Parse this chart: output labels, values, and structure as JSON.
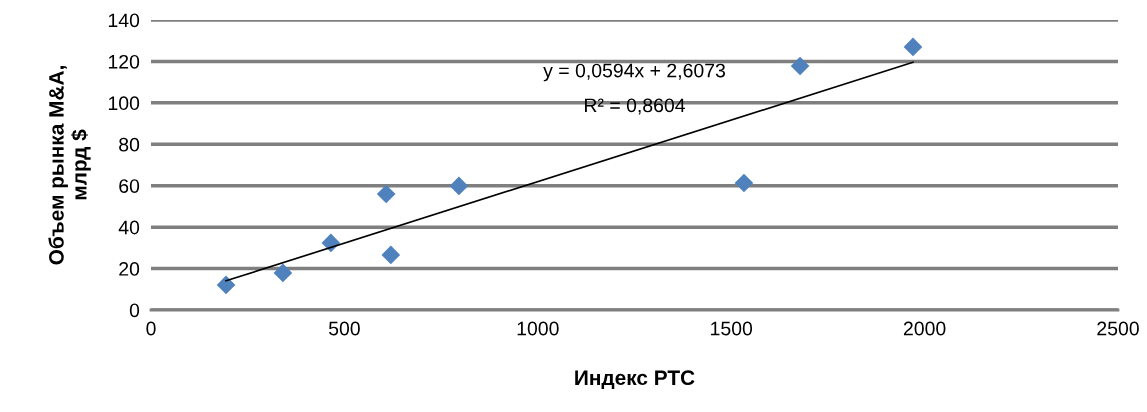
{
  "chart_data": {
    "type": "scatter",
    "xlabel": "Индекс РТС",
    "ylabel": "Объем рынка M&A,\nмлрд $",
    "series": [
      {
        "color": "#4f81bd",
        "marker": "diamond",
        "x": [
          194,
          341,
          465,
          608,
          620,
          796,
          1533,
          1678,
          1970
        ],
        "values": [
          12.1,
          17.9,
          32.4,
          56,
          26.6,
          59.9,
          61.3,
          117.8,
          127
        ]
      },
      {
        "type": "line",
        "color": "#000000",
        "marker": "none",
        "x": [
          194,
          1970
        ],
        "values": [
          14.1,
          119.6
        ]
      }
    ],
    "annotations": [
      "y = 0,0594x + 2,6073",
      "R² = 0,8604"
    ],
    "xlim": [
      0,
      2500
    ],
    "xticks": [
      0,
      500,
      1000,
      1500,
      2000,
      2500
    ],
    "ylim": [
      0,
      140
    ],
    "yticks": [
      0,
      20,
      40,
      60,
      80,
      100,
      120,
      140
    ],
    "grid": "y",
    "legend": false
  }
}
